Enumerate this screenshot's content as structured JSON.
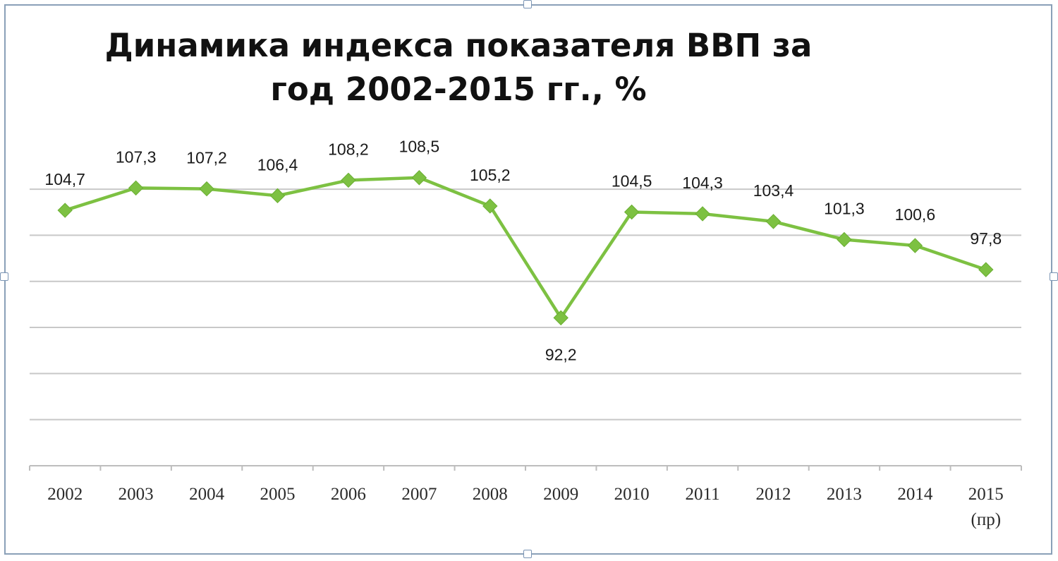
{
  "chart_data": {
    "type": "line",
    "title": "Динамика индекса показателя ВВП за год 2002-2015 гг., %",
    "categories": [
      "2002",
      "2003",
      "2004",
      "2005",
      "2006",
      "2007",
      "2008",
      "2009",
      "2010",
      "2011",
      "2012",
      "2013",
      "2014",
      "2015"
    ],
    "category_sublabels": [
      "",
      "",
      "",
      "",
      "",
      "",
      "",
      "",
      "",
      "",
      "",
      "",
      "",
      "(пр)"
    ],
    "series": [
      {
        "values": [
          104.7,
          107.3,
          107.2,
          106.4,
          108.2,
          108.5,
          105.2,
          92.2,
          104.5,
          104.3,
          103.4,
          101.3,
          100.6,
          97.8
        ],
        "color": "#7dc142",
        "marker": "diamond"
      }
    ],
    "data_labels": [
      "104,7",
      "107,3",
      "107,2",
      "106,4",
      "108,2",
      "108,5",
      "105,2",
      "92,2",
      "104,5",
      "104,3",
      "103,4",
      "101,3",
      "100,6",
      "97,8"
    ],
    "ylim": [
      75,
      112.5
    ],
    "y_gridline_step": 5.36,
    "y_axis_labels_shown": false,
    "grid": true,
    "legend": "none",
    "colors": {
      "line": "#7dc142",
      "grid": "#c8c8c8",
      "text": "#1a1a1a",
      "frame": "#8aa0b8"
    }
  }
}
